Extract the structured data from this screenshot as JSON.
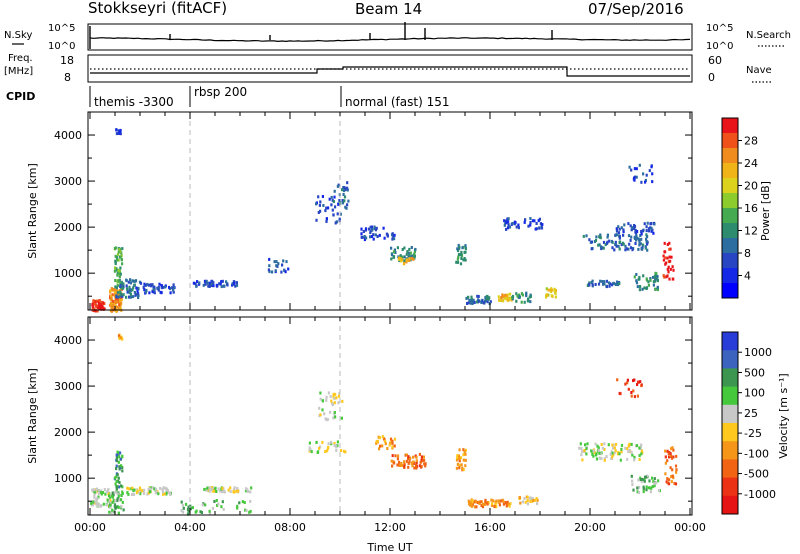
{
  "header": {
    "radar": "Stokkseyri (fitACF)",
    "beam": "Beam 14",
    "date": "07/Sep/2016"
  },
  "noise_panel": {
    "left_label": "N.Sky",
    "right_label": "N.Search",
    "left_ticks": [
      "10^5",
      "10^0"
    ],
    "right_ticks": [
      "10^5",
      "10^0"
    ]
  },
  "freq_panel": {
    "left_label_1": "Freq.",
    "left_label_2": "[MHz]",
    "left_ticks": [
      "18",
      "8"
    ],
    "right_label": "Nave",
    "right_ticks": [
      "60",
      "0"
    ]
  },
  "cpid_panel": {
    "label": "CPID",
    "segments": [
      {
        "text": "themis -3300",
        "start_hour": 0,
        "end_hour": 4
      },
      {
        "text": "rbsp 200",
        "start_hour": 4,
        "end_hour": 10
      },
      {
        "text": "normal (fast) 151",
        "start_hour": 10,
        "end_hour": 24
      }
    ]
  },
  "power_colorbar": {
    "label": "Power [dB]",
    "ticks": [
      "28",
      "24",
      "20",
      "16",
      "12",
      "8",
      "4"
    ],
    "colors": [
      "#e8141a",
      "#f0501a",
      "#f08c1e",
      "#f0b419",
      "#dcd21e",
      "#8ccd2d",
      "#46aa50",
      "#2d8c6e",
      "#2d6ea0",
      "#2846c3",
      "#1428e6",
      "#0000ff"
    ]
  },
  "velocity_colorbar": {
    "label": "Velocity [m s⁻¹]",
    "ticks": [
      "1000",
      "500",
      "100",
      "25",
      "-25",
      "-100",
      "-500",
      "-1000"
    ],
    "colors": [
      "#283cd7",
      "#3c64be",
      "#3c9650",
      "#46c83c",
      "#c8c8c8",
      "#ffc81e",
      "#f59619",
      "#f06414",
      "#eb3214",
      "#e61414"
    ]
  },
  "chart_data": [
    {
      "type": "heatmap",
      "title": "Power",
      "ylabel": "Slant Range [km]",
      "xlabel": "",
      "xlim": [
        0,
        24
      ],
      "ylim": [
        200,
        4500
      ],
      "yticks": [
        "4000",
        "3000",
        "2000",
        "1000"
      ],
      "ytick_values": [
        4000,
        3000,
        2000,
        1000
      ],
      "xtick_values": [
        0,
        4,
        8,
        12,
        16,
        20,
        24
      ],
      "dashed_lines_hours": [
        4,
        10
      ],
      "blobs": [
        {
          "t": 0.3,
          "r": 320,
          "dt": 0.25,
          "dr": 120,
          "c": 0,
          "n": 60
        },
        {
          "t": 1.0,
          "r": 450,
          "dt": 0.25,
          "dr": 250,
          "c": 2,
          "n": 80
        },
        {
          "t": 1.1,
          "r": 1100,
          "dt": 0.15,
          "dr": 500,
          "c": 6,
          "n": 50
        },
        {
          "t": 1.5,
          "r": 700,
          "dt": 0.5,
          "dr": 200,
          "c": 8,
          "n": 60
        },
        {
          "t": 2.6,
          "r": 700,
          "dt": 0.8,
          "dr": 100,
          "c": 9,
          "n": 50
        },
        {
          "t": 5.0,
          "r": 800,
          "dt": 0.9,
          "dr": 60,
          "c": 9,
          "n": 50
        },
        {
          "t": 1.1,
          "r": 4100,
          "dt": 0.1,
          "dr": 60,
          "c": 9,
          "n": 10
        },
        {
          "t": 7.5,
          "r": 1200,
          "dt": 0.4,
          "dr": 150,
          "c": 9,
          "n": 20
        },
        {
          "t": 9.5,
          "r": 2400,
          "dt": 0.5,
          "dr": 300,
          "c": 9,
          "n": 35
        },
        {
          "t": 10.0,
          "r": 2700,
          "dt": 0.3,
          "dr": 300,
          "c": 8,
          "n": 25
        },
        {
          "t": 11.5,
          "r": 1900,
          "dt": 0.7,
          "dr": 140,
          "c": 9,
          "n": 40
        },
        {
          "t": 12.5,
          "r": 1450,
          "dt": 0.5,
          "dr": 150,
          "c": 7,
          "n": 45
        },
        {
          "t": 12.6,
          "r": 1300,
          "dt": 0.3,
          "dr": 70,
          "c": 3,
          "n": 15
        },
        {
          "t": 14.8,
          "r": 1450,
          "dt": 0.2,
          "dr": 220,
          "c": 7,
          "n": 25
        },
        {
          "t": 15.5,
          "r": 450,
          "dt": 0.5,
          "dr": 80,
          "c": 8,
          "n": 40
        },
        {
          "t": 16.6,
          "r": 500,
          "dt": 0.3,
          "dr": 80,
          "c": 3,
          "n": 25
        },
        {
          "t": 17.2,
          "r": 500,
          "dt": 0.4,
          "dr": 100,
          "c": 7,
          "n": 25
        },
        {
          "t": 18.4,
          "r": 600,
          "dt": 0.2,
          "dr": 100,
          "c": 4,
          "n": 20
        },
        {
          "t": 17.3,
          "r": 2100,
          "dt": 0.8,
          "dr": 120,
          "c": 9,
          "n": 40
        },
        {
          "t": 21.0,
          "r": 1700,
          "dt": 1.3,
          "dr": 170,
          "c": 8,
          "n": 90
        },
        {
          "t": 21.8,
          "r": 2000,
          "dt": 0.8,
          "dr": 120,
          "c": 9,
          "n": 40
        },
        {
          "t": 22.2,
          "r": 850,
          "dt": 0.5,
          "dr": 180,
          "c": 7,
          "n": 40
        },
        {
          "t": 23.1,
          "r": 1300,
          "dt": 0.2,
          "dr": 400,
          "c": 0,
          "n": 30
        },
        {
          "t": 20.5,
          "r": 800,
          "dt": 0.7,
          "dr": 60,
          "c": 8,
          "n": 30
        },
        {
          "t": 22.0,
          "r": 3200,
          "dt": 0.5,
          "dr": 200,
          "c": 9,
          "n": 20
        }
      ]
    },
    {
      "type": "heatmap",
      "title": "Velocity",
      "ylabel": "Slant Range [km]",
      "xlabel": "Time UT",
      "xlim": [
        0,
        24
      ],
      "ylim": [
        200,
        4500
      ],
      "yticks": [
        "4000",
        "3000",
        "2000",
        "1000"
      ],
      "ytick_values": [
        4000,
        3000,
        2000,
        1000
      ],
      "xticks": [
        "00:00",
        "04:00",
        "08:00",
        "12:00",
        "16:00",
        "20:00",
        "00:00"
      ],
      "xtick_values": [
        0,
        4,
        8,
        12,
        16,
        20,
        24
      ],
      "dashed_lines_hours": [
        4,
        10
      ],
      "blobs": [
        {
          "t": 0.4,
          "r": 600,
          "dt": 0.4,
          "dr": 200,
          "c": 4,
          "n": 60
        },
        {
          "t": 1.0,
          "r": 500,
          "dt": 0.3,
          "dr": 250,
          "c": 3,
          "n": 50
        },
        {
          "t": 1.1,
          "r": 1200,
          "dt": 0.15,
          "dr": 400,
          "c": 2,
          "n": 40
        },
        {
          "t": 2.3,
          "r": 750,
          "dt": 0.9,
          "dr": 80,
          "c": 4,
          "n": 60
        },
        {
          "t": 5.5,
          "r": 780,
          "dt": 1.0,
          "dr": 50,
          "c": 4,
          "n": 50
        },
        {
          "t": 5.0,
          "r": 400,
          "dt": 1.4,
          "dr": 150,
          "c": 3,
          "n": 40
        },
        {
          "t": 9.6,
          "r": 2600,
          "dt": 0.5,
          "dr": 300,
          "c": 4,
          "n": 35
        },
        {
          "t": 9.5,
          "r": 1700,
          "dt": 0.8,
          "dr": 120,
          "c": 4,
          "n": 30
        },
        {
          "t": 12.7,
          "r": 1400,
          "dt": 0.7,
          "dr": 150,
          "c": 7,
          "n": 60
        },
        {
          "t": 11.8,
          "r": 1800,
          "dt": 0.4,
          "dr": 150,
          "c": 6,
          "n": 25
        },
        {
          "t": 14.8,
          "r": 1450,
          "dt": 0.2,
          "dr": 250,
          "c": 6,
          "n": 25
        },
        {
          "t": 16.0,
          "r": 480,
          "dt": 0.9,
          "dr": 80,
          "c": 6,
          "n": 60
        },
        {
          "t": 17.5,
          "r": 550,
          "dt": 0.4,
          "dr": 80,
          "c": 5,
          "n": 25
        },
        {
          "t": 20.8,
          "r": 1600,
          "dt": 1.3,
          "dr": 180,
          "c": 4,
          "n": 90
        },
        {
          "t": 22.2,
          "r": 900,
          "dt": 0.6,
          "dr": 180,
          "c": 3,
          "n": 40
        },
        {
          "t": 23.2,
          "r": 1300,
          "dt": 0.25,
          "dr": 400,
          "c": 7,
          "n": 35
        },
        {
          "t": 21.5,
          "r": 3000,
          "dt": 0.6,
          "dr": 200,
          "c": 8,
          "n": 20
        },
        {
          "t": 1.2,
          "r": 4100,
          "dt": 0.1,
          "dr": 50,
          "c": 6,
          "n": 8
        }
      ]
    }
  ]
}
